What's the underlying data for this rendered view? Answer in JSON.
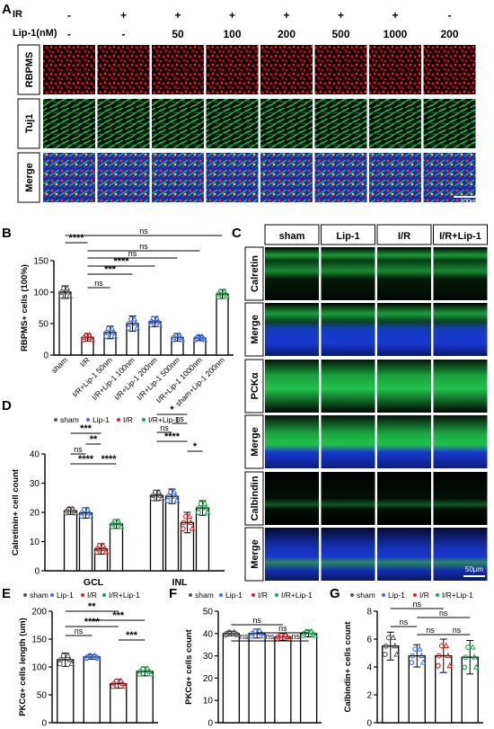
{
  "colors": {
    "rbpms": "#e01010",
    "tuj1": "#19b84a",
    "dapi": "#1530c8",
    "sham": "#555555",
    "lip1": "#3a6cf5",
    "ir": "#e12222",
    "irlip": "#17a84a"
  },
  "panels": {
    "A": "A",
    "B": "B",
    "C": "C",
    "D": "D",
    "E": "E",
    "F": "F",
    "G": "G"
  },
  "panelA": {
    "ir_label": "IR",
    "lip_label": "Lip-1(nM)",
    "ir_values": [
      "-",
      "+",
      "+",
      "+",
      "+",
      "+",
      "+",
      "-"
    ],
    "lip_values": [
      "-",
      "-",
      "50",
      "100",
      "200",
      "500",
      "1000",
      "200"
    ],
    "rows": [
      "RBPMS",
      "Tuj1",
      "Merge"
    ],
    "scale": "100μm"
  },
  "panelC": {
    "columns": [
      "sham",
      "Lip-1",
      "I/R",
      "I/R+Lip-1"
    ],
    "rows": [
      "Calretin",
      "Merge",
      "PCKα",
      "Merge",
      "Calbindin",
      "Merge"
    ],
    "scale": "50μm"
  },
  "legend": {
    "sham": "sham",
    "lip1": "Lip-1",
    "ir": "I/R",
    "irlip": "I/R+Lip-1"
  },
  "chart_data": [
    {
      "id": "B",
      "type": "bar",
      "ylabel": "RBPMS+ cells (100%)",
      "ylim": [
        0,
        150
      ],
      "yticks": [
        0,
        50,
        100,
        150
      ],
      "categories": [
        "sham",
        "I/R",
        "I/R+Lip-1 50nm",
        "I/R+Lip-1 100nm",
        "I/R+Lip-1 200nm",
        "I/R+Lip-1 500nm",
        "I/R+Lip-1 1000nm",
        "sham+Lip-1 200nm"
      ],
      "values": [
        100,
        28,
        36,
        50,
        53,
        28,
        27,
        97
      ],
      "errors": [
        10,
        6,
        10,
        12,
        8,
        6,
        4,
        7
      ],
      "point_colors": [
        "#555555",
        "#e12222",
        "#3a6cf5",
        "#3a6cf5",
        "#3a6cf5",
        "#3a6cf5",
        "#3a6cf5",
        "#17a84a"
      ],
      "sig": [
        {
          "a": 0,
          "b": 1,
          "label": "****"
        },
        {
          "a": 1,
          "b": 2,
          "label": "ns"
        },
        {
          "a": 1,
          "b": 3,
          "label": "***"
        },
        {
          "a": 1,
          "b": 4,
          "label": "****"
        },
        {
          "a": 1,
          "b": 5,
          "label": "ns"
        },
        {
          "a": 1,
          "b": 6,
          "label": "ns"
        },
        {
          "a": 0,
          "b": 7,
          "label": "ns"
        }
      ]
    },
    {
      "id": "D",
      "type": "bar",
      "ylabel": "Calretinin+ cell count",
      "ylim": [
        0,
        40
      ],
      "yticks": [
        0,
        10,
        20,
        30,
        40
      ],
      "groups": [
        "GCL",
        "INL"
      ],
      "series": [
        {
          "name": "sham",
          "values": [
            20.5,
            25.8
          ],
          "errors": [
            1.2,
            1.8
          ]
        },
        {
          "name": "Lip-1",
          "values": [
            19.8,
            25.5
          ],
          "errors": [
            1.8,
            2.5
          ]
        },
        {
          "name": "I/R",
          "values": [
            7.5,
            16.5
          ],
          "errors": [
            1.8,
            3.5
          ]
        },
        {
          "name": "I/R+Lip-1",
          "values": [
            16,
            21.5
          ],
          "errors": [
            1.5,
            2.5
          ]
        }
      ],
      "sig": [
        {
          "g": 0,
          "a": 0,
          "b": 2,
          "label": "***"
        },
        {
          "g": 0,
          "a": 1,
          "b": 2,
          "label": "**"
        },
        {
          "g": 0,
          "a": 0,
          "b": 1,
          "label": "ns"
        },
        {
          "g": 0,
          "a": 0,
          "b": 2,
          "label": "****"
        },
        {
          "g": 0,
          "a": 2,
          "b": 3,
          "label": "****"
        },
        {
          "g": 1,
          "a": 0,
          "b": 2,
          "label": "*"
        },
        {
          "g": 1,
          "a": 1,
          "b": 2,
          "label": "ns"
        },
        {
          "g": 1,
          "a": 0,
          "b": 1,
          "label": "ns"
        },
        {
          "g": 1,
          "a": 0,
          "b": 2,
          "label": "****"
        },
        {
          "g": 1,
          "a": 2,
          "b": 3,
          "label": "*"
        }
      ]
    },
    {
      "id": "E",
      "type": "bar",
      "ylabel": "PKCα+ cells length (um)",
      "ylim": [
        0,
        200
      ],
      "yticks": [
        0,
        50,
        100,
        150,
        200
      ],
      "categories": [
        "sham",
        "Lip-1",
        "I/R",
        "I/R+Lip-1"
      ],
      "values": [
        113,
        118,
        70,
        92
      ],
      "errors": [
        12,
        4,
        8,
        8
      ],
      "sig": [
        {
          "a": 0,
          "b": 2,
          "label": "**"
        },
        {
          "a": 1,
          "b": 3,
          "label": "***"
        },
        {
          "a": 0,
          "b": 2,
          "label": "****"
        },
        {
          "a": 0,
          "b": 1,
          "label": "ns"
        },
        {
          "a": 2,
          "b": 3,
          "label": "***"
        }
      ]
    },
    {
      "id": "F",
      "type": "bar",
      "ylabel": "PKCα+ cells count",
      "ylim": [
        0,
        50
      ],
      "yticks": [
        0,
        10,
        20,
        30,
        40,
        50
      ],
      "categories": [
        "sham",
        "Lip-1",
        "I/R",
        "I/R+Lip-1"
      ],
      "values": [
        40,
        40,
        38.5,
        40
      ],
      "errors": [
        1,
        2,
        1.5,
        1.5
      ],
      "sig": [
        {
          "a": 0,
          "b": 2,
          "label": "ns"
        },
        {
          "a": 1,
          "b": 3,
          "label": "ns"
        },
        {
          "a": 0,
          "b": 1,
          "label": "ns"
        },
        {
          "a": 1,
          "b": 2,
          "label": "ns"
        },
        {
          "a": 2,
          "b": 3,
          "label": "ns"
        }
      ]
    },
    {
      "id": "G",
      "type": "bar",
      "ylabel": "Calbindin+ cells count",
      "ylim": [
        0,
        8
      ],
      "yticks": [
        0,
        2,
        4,
        6,
        8
      ],
      "categories": [
        "sham",
        "Lip-1",
        "I/R",
        "I/R+Lip-1"
      ],
      "values": [
        5.5,
        4.8,
        4.8,
        4.7
      ],
      "errors": [
        1,
        0.8,
        1.2,
        1.2
      ],
      "sig": [
        {
          "a": 0,
          "b": 2,
          "label": "ns"
        },
        {
          "a": 1,
          "b": 3,
          "label": "ns"
        },
        {
          "a": 0,
          "b": 1,
          "label": "ns"
        },
        {
          "a": 1,
          "b": 2,
          "label": "ns"
        },
        {
          "a": 2,
          "b": 3,
          "label": "ns"
        }
      ]
    }
  ]
}
